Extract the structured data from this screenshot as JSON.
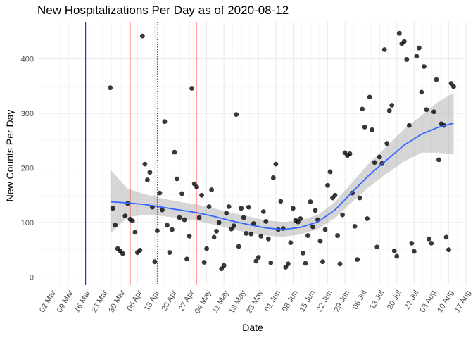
{
  "chart_data": {
    "type": "scatter",
    "title": "New Hospitalizations Per Day as of 2020-08-12",
    "xlabel": "Date",
    "ylabel": "New Counts Per Day",
    "x_axis_type": "date",
    "xlim": [
      "2020-02-26",
      "2020-08-17"
    ],
    "ylim": [
      -15,
      468
    ],
    "y_ticks": [
      0,
      100,
      200,
      300,
      400
    ],
    "x_ticks": [
      "2020-03-02",
      "2020-03-09",
      "2020-03-16",
      "2020-03-23",
      "2020-03-30",
      "2020-04-06",
      "2020-04-13",
      "2020-04-20",
      "2020-04-27",
      "2020-05-04",
      "2020-05-11",
      "2020-05-18",
      "2020-05-25",
      "2020-06-01",
      "2020-06-08",
      "2020-06-15",
      "2020-06-22",
      "2020-06-29",
      "2020-07-06",
      "2020-07-13",
      "2020-07-20",
      "2020-07-27",
      "2020-08-03",
      "2020-08-10",
      "2020-08-17"
    ],
    "x_tick_labels": [
      "02 Mar",
      "09 Mar",
      "16 Mar",
      "23 Mar",
      "30 Mar",
      "06 Apr",
      "13 Apr",
      "20 Apr",
      "27 Apr",
      "04 May",
      "11 May",
      "18 May",
      "25 May",
      "01 Jun",
      "08 Jun",
      "15 Jun",
      "22 Jun",
      "29 Jun",
      "06 Jul",
      "13 Jul",
      "20 Jul",
      "27 Jul",
      "03 Aug",
      "10 Aug",
      "17 Aug"
    ],
    "grid": true,
    "vertical_lines": [
      {
        "date": "2020-03-16",
        "color": "#0000ff",
        "style": "solid"
      },
      {
        "date": "2020-04-03",
        "color": "#ff0000",
        "style": "solid"
      },
      {
        "date": "2020-04-14",
        "color": "#ff0000",
        "style": "dotted"
      },
      {
        "date": "2020-04-30",
        "color": "#ff9999",
        "style": "solid"
      },
      {
        "date": "2020-05-17",
        "color": "#dddddd",
        "style": "dotted"
      }
    ],
    "points": [
      {
        "x": "2020-03-26",
        "y": 347
      },
      {
        "x": "2020-03-27",
        "y": 126
      },
      {
        "x": "2020-03-28",
        "y": 95
      },
      {
        "x": "2020-03-29",
        "y": 52
      },
      {
        "x": "2020-03-30",
        "y": 48
      },
      {
        "x": "2020-03-31",
        "y": 43
      },
      {
        "x": "2020-04-01",
        "y": 112
      },
      {
        "x": "2020-04-02",
        "y": 135
      },
      {
        "x": "2020-04-03",
        "y": 106
      },
      {
        "x": "2020-04-04",
        "y": 103
      },
      {
        "x": "2020-04-05",
        "y": 82
      },
      {
        "x": "2020-04-06",
        "y": 45
      },
      {
        "x": "2020-04-07",
        "y": 49
      },
      {
        "x": "2020-04-08",
        "y": 442
      },
      {
        "x": "2020-04-09",
        "y": 207
      },
      {
        "x": "2020-04-10",
        "y": 178
      },
      {
        "x": "2020-04-11",
        "y": 192
      },
      {
        "x": "2020-04-12",
        "y": 128
      },
      {
        "x": "2020-04-13",
        "y": 28
      },
      {
        "x": "2020-04-14",
        "y": 85
      },
      {
        "x": "2020-04-15",
        "y": 154
      },
      {
        "x": "2020-04-16",
        "y": 123
      },
      {
        "x": "2020-04-17",
        "y": 285
      },
      {
        "x": "2020-04-18",
        "y": 95
      },
      {
        "x": "2020-04-19",
        "y": 45
      },
      {
        "x": "2020-04-20",
        "y": 87
      },
      {
        "x": "2020-04-21",
        "y": 229
      },
      {
        "x": "2020-04-22",
        "y": 180
      },
      {
        "x": "2020-04-23",
        "y": 109
      },
      {
        "x": "2020-04-24",
        "y": 153
      },
      {
        "x": "2020-04-25",
        "y": 105
      },
      {
        "x": "2020-04-26",
        "y": 33
      },
      {
        "x": "2020-04-27",
        "y": 75
      },
      {
        "x": "2020-04-28",
        "y": 346
      },
      {
        "x": "2020-04-29",
        "y": 171
      },
      {
        "x": "2020-04-30",
        "y": 165
      },
      {
        "x": "2020-05-01",
        "y": 109
      },
      {
        "x": "2020-05-02",
        "y": 150
      },
      {
        "x": "2020-05-03",
        "y": 27
      },
      {
        "x": "2020-05-04",
        "y": 52
      },
      {
        "x": "2020-05-05",
        "y": 129
      },
      {
        "x": "2020-05-06",
        "y": 160
      },
      {
        "x": "2020-05-07",
        "y": 73
      },
      {
        "x": "2020-05-08",
        "y": 84
      },
      {
        "x": "2020-05-09",
        "y": 100
      },
      {
        "x": "2020-05-10",
        "y": 15
      },
      {
        "x": "2020-05-11",
        "y": 21
      },
      {
        "x": "2020-05-12",
        "y": 117
      },
      {
        "x": "2020-05-13",
        "y": 129
      },
      {
        "x": "2020-05-14",
        "y": 88
      },
      {
        "x": "2020-05-15",
        "y": 94
      },
      {
        "x": "2020-05-16",
        "y": 298
      },
      {
        "x": "2020-05-17",
        "y": 56
      },
      {
        "x": "2020-05-18",
        "y": 126
      },
      {
        "x": "2020-05-19",
        "y": 109
      },
      {
        "x": "2020-05-20",
        "y": 80
      },
      {
        "x": "2020-05-21",
        "y": 128
      },
      {
        "x": "2020-05-22",
        "y": 79
      },
      {
        "x": "2020-05-23",
        "y": 98
      },
      {
        "x": "2020-05-24",
        "y": 29
      },
      {
        "x": "2020-05-25",
        "y": 36
      },
      {
        "x": "2020-05-26",
        "y": 75
      },
      {
        "x": "2020-05-27",
        "y": 120
      },
      {
        "x": "2020-05-28",
        "y": 102
      },
      {
        "x": "2020-05-29",
        "y": 70
      },
      {
        "x": "2020-05-30",
        "y": 26
      },
      {
        "x": "2020-05-31",
        "y": 182
      },
      {
        "x": "2020-06-01",
        "y": 207
      },
      {
        "x": "2020-06-02",
        "y": 87
      },
      {
        "x": "2020-06-03",
        "y": 139
      },
      {
        "x": "2020-06-04",
        "y": 89
      },
      {
        "x": "2020-06-05",
        "y": 18
      },
      {
        "x": "2020-06-06",
        "y": 24
      },
      {
        "x": "2020-06-07",
        "y": 63
      },
      {
        "x": "2020-06-08",
        "y": 126
      },
      {
        "x": "2020-06-09",
        "y": 104
      },
      {
        "x": "2020-06-10",
        "y": 101
      },
      {
        "x": "2020-06-11",
        "y": 107
      },
      {
        "x": "2020-06-12",
        "y": 44
      },
      {
        "x": "2020-06-13",
        "y": 25
      },
      {
        "x": "2020-06-14",
        "y": 76
      },
      {
        "x": "2020-06-15",
        "y": 138
      },
      {
        "x": "2020-06-16",
        "y": 92
      },
      {
        "x": "2020-06-17",
        "y": 122
      },
      {
        "x": "2020-06-18",
        "y": 105
      },
      {
        "x": "2020-06-19",
        "y": 66
      },
      {
        "x": "2020-06-20",
        "y": 28
      },
      {
        "x": "2020-06-21",
        "y": 87
      },
      {
        "x": "2020-06-22",
        "y": 168
      },
      {
        "x": "2020-06-23",
        "y": 193
      },
      {
        "x": "2020-06-24",
        "y": 145
      },
      {
        "x": "2020-06-25",
        "y": 150
      },
      {
        "x": "2020-06-26",
        "y": 76
      },
      {
        "x": "2020-06-27",
        "y": 24
      },
      {
        "x": "2020-06-28",
        "y": 114
      },
      {
        "x": "2020-06-29",
        "y": 228
      },
      {
        "x": "2020-06-30",
        "y": 223
      },
      {
        "x": "2020-07-01",
        "y": 226
      },
      {
        "x": "2020-07-02",
        "y": 154
      },
      {
        "x": "2020-07-03",
        "y": 93
      },
      {
        "x": "2020-07-04",
        "y": 32
      },
      {
        "x": "2020-07-05",
        "y": 145
      },
      {
        "x": "2020-07-06",
        "y": 308
      },
      {
        "x": "2020-07-07",
        "y": 275
      },
      {
        "x": "2020-07-08",
        "y": 107
      },
      {
        "x": "2020-07-09",
        "y": 330
      },
      {
        "x": "2020-07-10",
        "y": 270
      },
      {
        "x": "2020-07-11",
        "y": 210
      },
      {
        "x": "2020-07-12",
        "y": 55
      },
      {
        "x": "2020-07-13",
        "y": 220
      },
      {
        "x": "2020-07-14",
        "y": 208
      },
      {
        "x": "2020-07-15",
        "y": 417
      },
      {
        "x": "2020-07-16",
        "y": 245
      },
      {
        "x": "2020-07-17",
        "y": 305
      },
      {
        "x": "2020-07-18",
        "y": 315
      },
      {
        "x": "2020-07-19",
        "y": 48
      },
      {
        "x": "2020-07-20",
        "y": 38
      },
      {
        "x": "2020-07-21",
        "y": 447
      },
      {
        "x": "2020-07-22",
        "y": 428
      },
      {
        "x": "2020-07-23",
        "y": 432
      },
      {
        "x": "2020-07-24",
        "y": 399
      },
      {
        "x": "2020-07-25",
        "y": 278
      },
      {
        "x": "2020-07-26",
        "y": 62
      },
      {
        "x": "2020-07-27",
        "y": 47
      },
      {
        "x": "2020-07-28",
        "y": 405
      },
      {
        "x": "2020-07-29",
        "y": 420
      },
      {
        "x": "2020-07-30",
        "y": 339
      },
      {
        "x": "2020-07-31",
        "y": 386
      },
      {
        "x": "2020-08-01",
        "y": 307
      },
      {
        "x": "2020-08-02",
        "y": 70
      },
      {
        "x": "2020-08-03",
        "y": 62
      },
      {
        "x": "2020-08-04",
        "y": 303
      },
      {
        "x": "2020-08-05",
        "y": 362
      },
      {
        "x": "2020-08-06",
        "y": 215
      },
      {
        "x": "2020-08-07",
        "y": 281
      },
      {
        "x": "2020-08-08",
        "y": 278
      },
      {
        "x": "2020-08-09",
        "y": 73
      },
      {
        "x": "2020-08-10",
        "y": 50
      },
      {
        "x": "2020-08-11",
        "y": 355
      },
      {
        "x": "2020-08-12",
        "y": 349
      }
    ],
    "smooth": {
      "method": "loess",
      "color": "#3366ff",
      "x": [
        "2020-03-26",
        "2020-04-02",
        "2020-04-09",
        "2020-04-16",
        "2020-04-23",
        "2020-04-30",
        "2020-05-07",
        "2020-05-14",
        "2020-05-21",
        "2020-05-28",
        "2020-06-04",
        "2020-06-11",
        "2020-06-18",
        "2020-06-25",
        "2020-07-02",
        "2020-07-09",
        "2020-07-16",
        "2020-07-23",
        "2020-07-30",
        "2020-08-06",
        "2020-08-12"
      ],
      "y": [
        138,
        136,
        133,
        128,
        123,
        118,
        111,
        103,
        96,
        90,
        87,
        91,
        101,
        123,
        156,
        188,
        215,
        242,
        262,
        275,
        282
      ],
      "lower": [
        80,
        110,
        114,
        112,
        108,
        103,
        96,
        88,
        81,
        76,
        74,
        78,
        88,
        108,
        138,
        166,
        190,
        212,
        228,
        228,
        225
      ],
      "upper": [
        197,
        162,
        152,
        144,
        138,
        133,
        126,
        118,
        111,
        104,
        101,
        104,
        114,
        138,
        174,
        210,
        240,
        272,
        296,
        322,
        338
      ]
    }
  }
}
